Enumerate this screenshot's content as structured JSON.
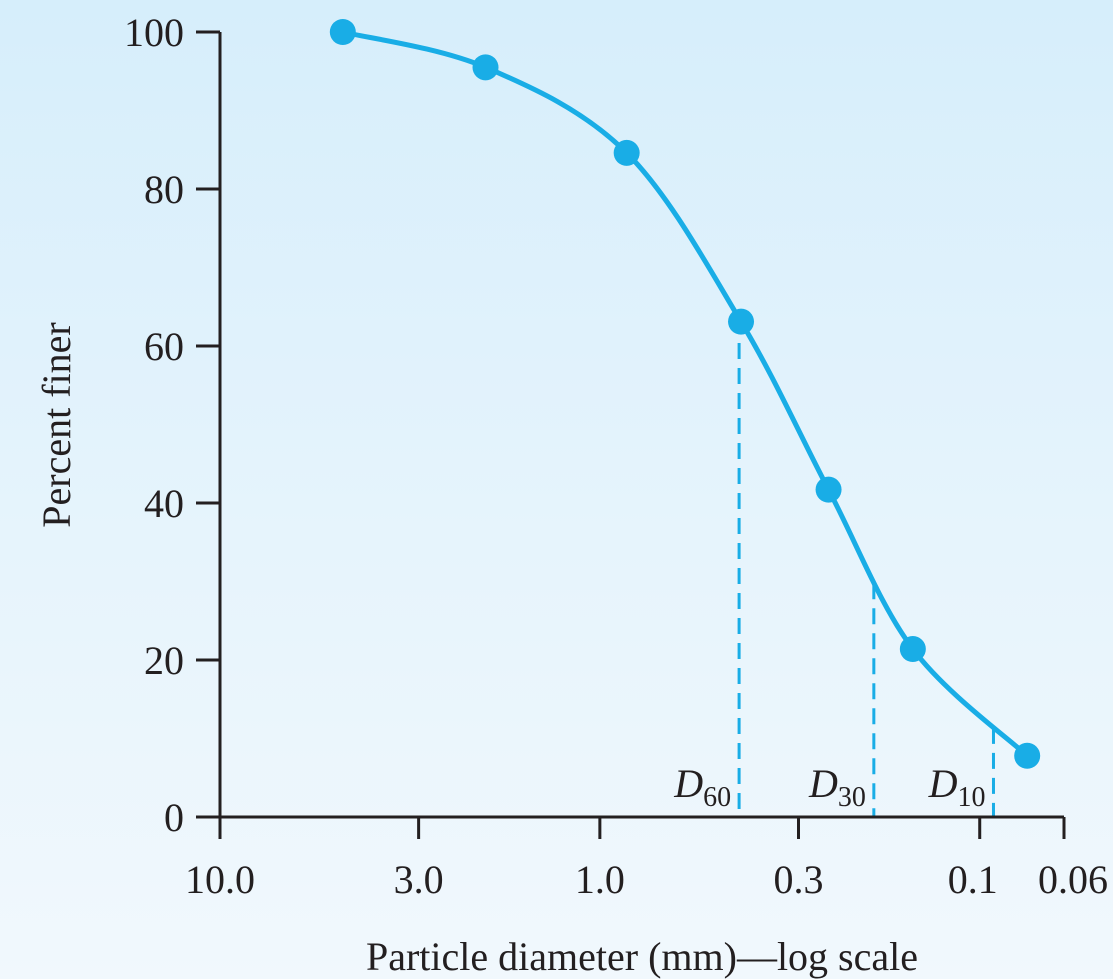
{
  "chart_data": {
    "type": "line",
    "xlabel": "Particle diameter (mm)—log scale",
    "ylabel": "Percent finer",
    "x_scale": "log",
    "x_reversed": true,
    "xlim": [
      10.0,
      0.06
    ],
    "ylim": [
      0,
      100
    ],
    "grid": false,
    "x_ticks": [
      {
        "value": 10.0,
        "label": "10.0"
      },
      {
        "value": 3.0,
        "label": "3.0"
      },
      {
        "value": 1.0,
        "label": "1.0"
      },
      {
        "value": 0.3,
        "label": "0.3"
      },
      {
        "value": 0.1,
        "label": "0.1"
      },
      {
        "value": 0.06,
        "label": "0.06"
      }
    ],
    "y_ticks": [
      {
        "value": 0,
        "label": "0"
      },
      {
        "value": 20,
        "label": "20"
      },
      {
        "value": 40,
        "label": "40"
      },
      {
        "value": 60,
        "label": "60"
      },
      {
        "value": 80,
        "label": "80"
      },
      {
        "value": 100,
        "label": "100"
      }
    ],
    "series": [
      {
        "color": "#19ade6",
        "points": [
          {
            "x": 4.75,
            "y": 100
          },
          {
            "x": 2.0,
            "y": 95.5
          },
          {
            "x": 0.85,
            "y": 84.6
          },
          {
            "x": 0.425,
            "y": 63.1
          },
          {
            "x": 0.25,
            "y": 41.7
          },
          {
            "x": 0.15,
            "y": 21.4
          },
          {
            "x": 0.075,
            "y": 7.8
          }
        ]
      }
    ],
    "annotations": [
      {
        "base": "D",
        "sub": "60",
        "x": 0.43,
        "y": 60
      },
      {
        "base": "D",
        "sub": "30",
        "x": 0.19,
        "y": 30
      },
      {
        "base": "D",
        "sub": "10",
        "x": 0.092,
        "y": 10
      }
    ]
  }
}
